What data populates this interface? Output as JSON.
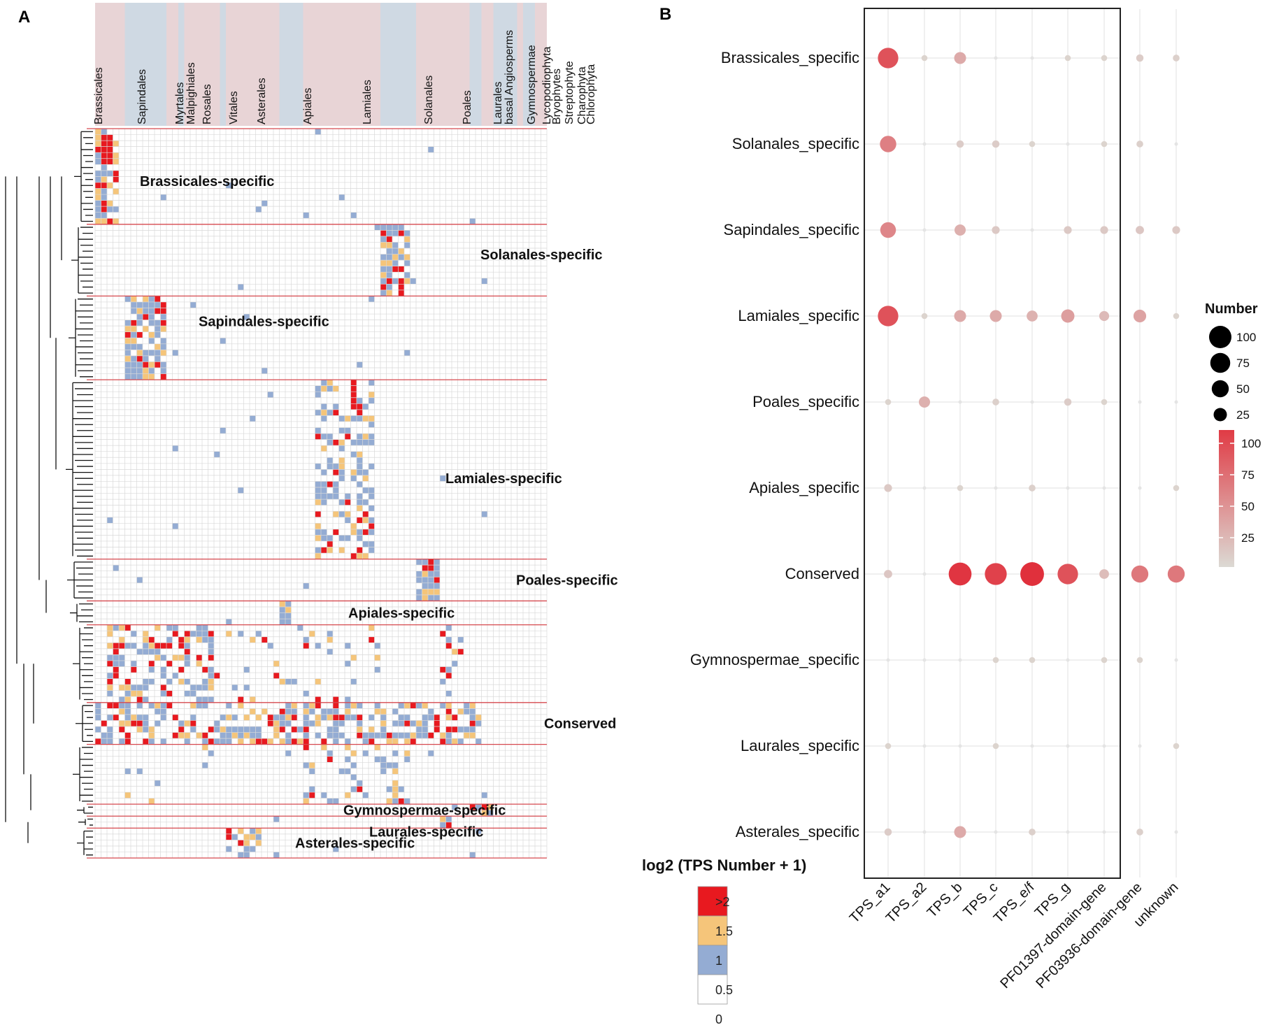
{
  "panel_labels": {
    "a": "A",
    "b": "B"
  },
  "colors": {
    "bg_pink": "#e8d4d6",
    "bg_blue": "#cfd9e3",
    "cell_blue": "#94acd3",
    "cell_orange": "#f5c57a",
    "cell_red": "#e8191f",
    "grid": "#d9d9d9",
    "sep_red": "#d6494f",
    "bubble_low": "#dcdad4",
    "bubble_high": "#e03b45",
    "panel_grid": "#e6e6e6"
  },
  "chart_data": [
    {
      "type": "heatmap",
      "title": "",
      "columns": [
        {
          "label": "Brassicales",
          "group": "pink"
        },
        {
          "label": "Sapindales",
          "group": "blue"
        },
        {
          "label": "Myrtales",
          "group": "pink"
        },
        {
          "label": "Malpighiales",
          "group": "blue"
        },
        {
          "label": "Rosales",
          "group": "pink"
        },
        {
          "label": "Vitales",
          "group": "blue"
        },
        {
          "label": "Asterales",
          "group": "pink"
        },
        {
          "label": "Apiales",
          "group": "blue"
        },
        {
          "label": "Lamiales",
          "group": "pink"
        },
        {
          "label": "Solanales",
          "group": "blue"
        },
        {
          "label": "Poales",
          "group": "pink"
        },
        {
          "label": "Laurales",
          "group": "blue"
        },
        {
          "label": "basal Angiosperms",
          "group": "pink"
        },
        {
          "label": "Gymnospermae",
          "group": "blue"
        },
        {
          "label": "Lycopodiophyta",
          "group": "pink"
        },
        {
          "label": "Bryophytes",
          "group": "blue"
        },
        {
          "label": "Streptophyte",
          "group": "pink"
        },
        {
          "label": "Charophyta",
          "group": "blue"
        },
        {
          "label": "Chlorophyta",
          "group": "pink"
        }
      ],
      "clusters": [
        {
          "label": "Brassicales-specific",
          "rows": 16
        },
        {
          "label": "Solanales-specific",
          "rows": 12
        },
        {
          "label": "Sapindales-specific",
          "rows": 14
        },
        {
          "label": "Lamiales-specific",
          "rows": 30
        },
        {
          "label": "Poales-specific",
          "rows": 7
        },
        {
          "label": "Apiales-specific",
          "rows": 4
        },
        {
          "label": "",
          "rows": 13
        },
        {
          "label": "Conserved",
          "rows": 7
        },
        {
          "label": "",
          "rows": 10
        },
        {
          "label": "Gymnospermae-specific",
          "rows": 2
        },
        {
          "label": "Laurales-specific",
          "rows": 2
        },
        {
          "label": "Asterales-specific",
          "rows": 5
        }
      ],
      "legend": {
        "title": "log2 (TPS Number + 1)",
        "ticks": [
          ">2",
          "1.5",
          "1",
          "0.5",
          "0"
        ]
      }
    },
    {
      "type": "scatter",
      "subtype": "dot-plot",
      "x_categories": [
        "TPS_a1",
        "TPS_a2",
        "TPS_b",
        "TPS_c",
        "TPS_e/f",
        "TPS_g",
        "PF01397-domain-gene",
        "PF03936-domain-gene",
        "unknown"
      ],
      "y_categories": [
        "Brassicales_specific",
        "Solanales_specific",
        "Sapindales_specific",
        "Lamiales_specific",
        "Poales_specific",
        "Apiales_specific",
        "Conserved",
        "Gymnospermae_specific",
        "Laurales_specific",
        "Asterales_specific"
      ],
      "values": [
        [
          80,
          1,
          18,
          0,
          0,
          1,
          1,
          3,
          2
        ],
        [
          45,
          0,
          3,
          3,
          1,
          0,
          1,
          2,
          0
        ],
        [
          40,
          0,
          15,
          4,
          0,
          4,
          4,
          5,
          4
        ],
        [
          80,
          1,
          18,
          18,
          14,
          25,
          10,
          22,
          1
        ],
        [
          1,
          15,
          0,
          2,
          0,
          3,
          1,
          0,
          0
        ],
        [
          4,
          0,
          1,
          0,
          2,
          0,
          0,
          0,
          1
        ],
        [
          5,
          0,
          105,
          95,
          115,
          80,
          9,
          50,
          50
        ],
        [
          0,
          0,
          0,
          1,
          1,
          0,
          1,
          1,
          0
        ],
        [
          1,
          0,
          0,
          1,
          0,
          0,
          0,
          0,
          1
        ],
        [
          3,
          0,
          18,
          0,
          2,
          0,
          0,
          2,
          0
        ]
      ],
      "size_legend": {
        "title": "Number",
        "values": [
          "100",
          "75",
          "50",
          "25"
        ]
      },
      "color_legend": {
        "values": [
          "100",
          "75",
          "50",
          "25"
        ]
      }
    }
  ]
}
